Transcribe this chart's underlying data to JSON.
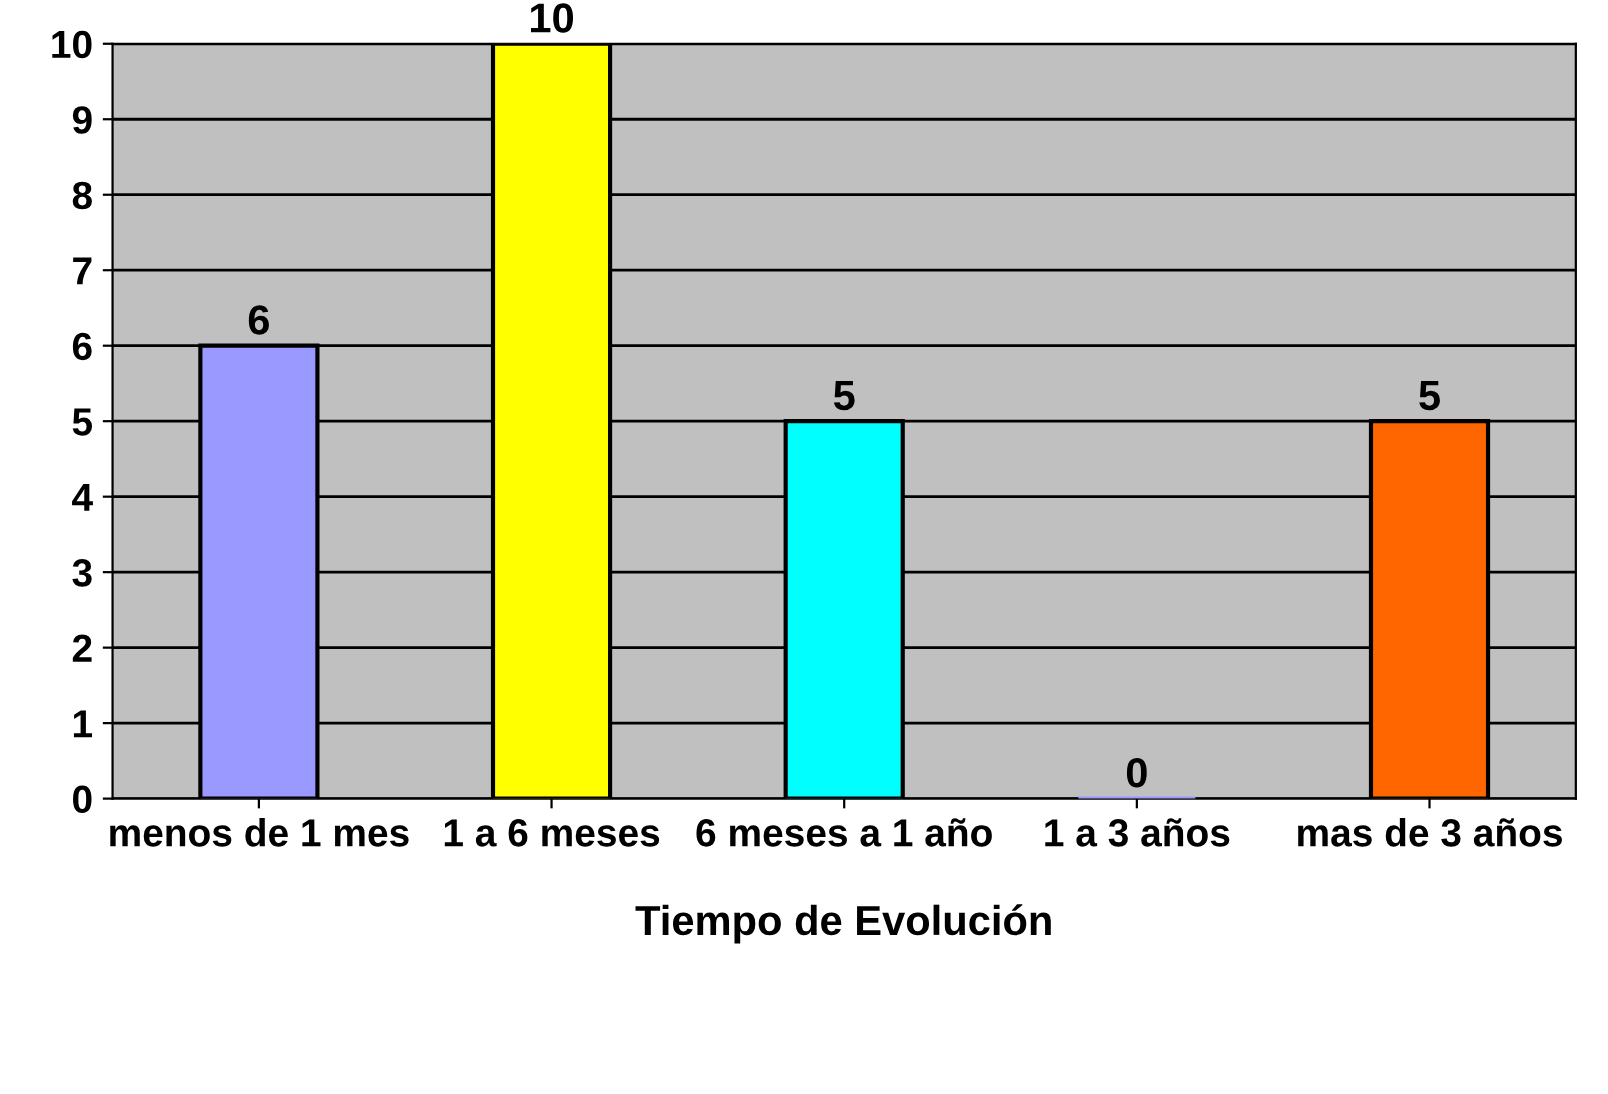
{
  "chart_data": {
    "type": "bar",
    "xlabel": "Tiempo de Evolución",
    "categories": [
      "menos de 1 mes",
      "1 a 6 meses",
      "6 meses a 1 año",
      "1 a 3 años",
      "mas de 3 años"
    ],
    "values": [
      6,
      10,
      5,
      0,
      5
    ],
    "colors": [
      "#9999ff",
      "#ffff00",
      "#00ffff",
      "#9999ff",
      "#ff6600"
    ],
    "ylim": [
      0,
      10
    ],
    "yticks": [
      0,
      1,
      2,
      3,
      4,
      5,
      6,
      7,
      8,
      9,
      10
    ],
    "grid": "y",
    "data_labels": true
  }
}
